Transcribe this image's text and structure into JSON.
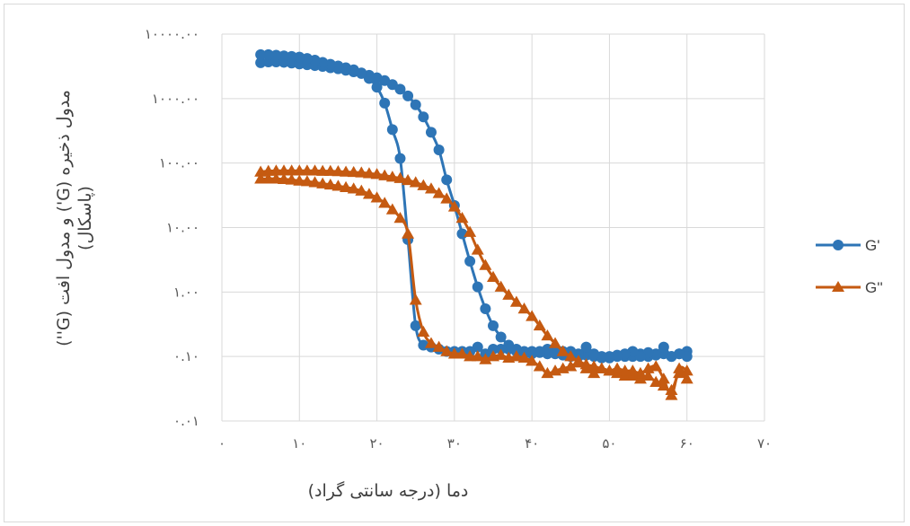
{
  "chart_data": {
    "type": "scatter",
    "title": "",
    "xlabel": "دما (درجه سانتی گراد)",
    "ylabel_line1": "مدول ذخیره (G') و مدول افت (G'')",
    "ylabel_line2": "(پاسکال)",
    "xlim": [
      0,
      70
    ],
    "ylim": [
      0.01,
      10000
    ],
    "yscale": "log",
    "grid": true,
    "legend_position": "right",
    "x_tick_labels": [
      "۰",
      "۱۰",
      "۲۰",
      "۳۰",
      "۴۰",
      "۵۰",
      "۶۰",
      "۷۰"
    ],
    "y_tick_labels": [
      "۰.۰۱",
      "۰.۱۰",
      "۱.۰۰",
      "۱۰.۰۰",
      "۱۰۰.۰۰",
      "۱۰۰۰.۰۰",
      "۱۰۰۰۰.۰۰"
    ],
    "series": [
      {
        "name": "G'",
        "color": "#2e75b6",
        "marker": "circle",
        "segments": [
          {
            "x": [
              5,
              6,
              7,
              8,
              9,
              10,
              11,
              12,
              13,
              14,
              15,
              16,
              17,
              18,
              19,
              20,
              21,
              22,
              23,
              24,
              25,
              26,
              27,
              28,
              29,
              30,
              31,
              32,
              33,
              34,
              35,
              36,
              37,
              38,
              39,
              40,
              41,
              42,
              43,
              44,
              45,
              46,
              47,
              48,
              49,
              50,
              51,
              52,
              53,
              54,
              55,
              56,
              57,
              58,
              59,
              60
            ],
            "y": [
              3600,
              3700,
              3700,
              3650,
              3550,
              3450,
              3350,
              3250,
              3150,
              3000,
              2900,
              2750,
              2600,
              2450,
              2300,
              2100,
              1900,
              1650,
              1400,
              1100,
              800,
              520,
              300,
              160,
              55,
              22,
              8,
              3,
              1.2,
              0.55,
              0.3,
              0.2,
              0.15,
              0.13,
              0.12,
              0.12,
              0.115,
              0.11,
              0.11,
              0.105,
              0.1,
              0.1,
              0.105,
              0.1,
              0.095,
              0.1,
              0.105,
              0.1,
              0.1,
              0.11,
              0.1,
              0.105,
              0.11,
              0.1,
              0.11,
              0.12
            ]
          },
          {
            "x": [
              60,
              59,
              58,
              57,
              56,
              55,
              54,
              53,
              52,
              51,
              50,
              49,
              48,
              47,
              46,
              45,
              44,
              43,
              42,
              41,
              40,
              39,
              38,
              37,
              36,
              35,
              34,
              33,
              32,
              31,
              30,
              29,
              28,
              27,
              26,
              25,
              24,
              23,
              22,
              21,
              20,
              19,
              18,
              17,
              16,
              15,
              14,
              13,
              12,
              11,
              10,
              9,
              8,
              7,
              6,
              5
            ],
            "y": [
              0.1,
              0.11,
              0.1,
              0.14,
              0.11,
              0.115,
              0.1,
              0.12,
              0.11,
              0.1,
              0.095,
              0.1,
              0.11,
              0.14,
              0.11,
              0.12,
              0.12,
              0.12,
              0.13,
              0.12,
              0.11,
              0.11,
              0.12,
              0.13,
              0.13,
              0.13,
              0.11,
              0.14,
              0.12,
              0.12,
              0.12,
              0.12,
              0.13,
              0.14,
              0.15,
              0.3,
              6.5,
              118,
              330,
              850,
              1500,
              2050,
              2500,
              2800,
              3000,
              3200,
              3400,
              3650,
              3950,
              4200,
              4400,
              4500,
              4600,
              4700,
              4800,
              4800
            ]
          }
        ]
      },
      {
        "name": "G''",
        "color": "#c55a11",
        "marker": "triangle",
        "segments": [
          {
            "x": [
              5,
              6,
              7,
              8,
              9,
              10,
              11,
              12,
              13,
              14,
              15,
              16,
              17,
              18,
              19,
              20,
              21,
              22,
              23,
              24,
              25,
              26,
              27,
              28,
              29,
              30,
              31,
              32,
              33,
              34,
              35,
              36,
              37,
              38,
              39,
              40,
              41,
              42,
              43,
              44,
              45,
              46,
              47,
              48,
              49,
              50,
              51,
              52,
              53,
              54,
              55,
              56,
              57,
              58,
              59,
              60
            ],
            "y": [
              73,
              75,
              76,
              76,
              76,
              76,
              76,
              76,
              75,
              75,
              74,
              73,
              72,
              71,
              69,
              67,
              64,
              61,
              58,
              54,
              50,
              45,
              40,
              34,
              28,
              21,
              14,
              8.5,
              4.5,
              2.6,
              1.7,
              1.2,
              0.9,
              0.7,
              0.55,
              0.42,
              0.3,
              0.21,
              0.16,
              0.12,
              0.1,
              0.085,
              0.075,
              0.07,
              0.065,
              0.06,
              0.055,
              0.05,
              0.05,
              0.045,
              0.05,
              0.04,
              0.035,
              0.03,
              0.055,
              0.045
            ]
          },
          {
            "x": [
              60,
              59,
              58,
              57,
              56,
              55,
              54,
              53,
              52,
              51,
              50,
              49,
              48,
              47,
              46,
              45,
              44,
              43,
              42,
              41,
              40,
              39,
              38,
              37,
              36,
              35,
              34,
              33,
              32,
              31,
              30,
              29,
              28,
              27,
              26,
              25,
              24,
              23,
              22,
              21,
              20,
              19,
              18,
              17,
              16,
              15,
              14,
              13,
              12,
              11,
              10,
              9,
              8,
              7,
              6,
              5
            ],
            "y": [
              0.06,
              0.065,
              0.025,
              0.045,
              0.07,
              0.065,
              0.055,
              0.06,
              0.06,
              0.065,
              0.06,
              0.065,
              0.055,
              0.065,
              0.08,
              0.07,
              0.065,
              0.06,
              0.055,
              0.07,
              0.085,
              0.095,
              0.1,
              0.095,
              0.105,
              0.1,
              0.09,
              0.1,
              0.1,
              0.11,
              0.11,
              0.12,
              0.14,
              0.16,
              0.24,
              0.75,
              8,
              14,
              19,
              24,
              29,
              33,
              37,
              40,
              42,
              44,
              46,
              48,
              50,
              52,
              53,
              55,
              56,
              57,
              57,
              57
            ]
          }
        ]
      }
    ]
  }
}
